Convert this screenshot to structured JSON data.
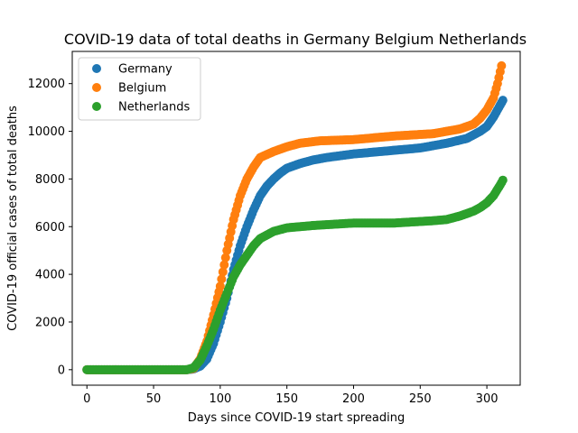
{
  "chart_data": {
    "type": "scatter",
    "title": "COVID-19 data of total deaths in Germany Belgium Netherlands",
    "xlabel": "Days since COVID-19 start spreading",
    "ylabel": "COVID-19 official cases of total deaths",
    "xlim": [
      -11,
      325
    ],
    "ylim": [
      -650,
      13350
    ],
    "xticks": [
      0,
      50,
      100,
      150,
      200,
      250,
      300
    ],
    "yticks": [
      0,
      2000,
      4000,
      6000,
      8000,
      10000,
      12000
    ],
    "legend": {
      "placement": "upper-left"
    },
    "grid": false,
    "x": {
      "start": 0,
      "end": 312,
      "step": 1
    },
    "series": [
      {
        "name": "Germany",
        "color": "#1f77b4",
        "keypoints": [
          [
            0,
            0
          ],
          [
            75,
            0
          ],
          [
            80,
            30
          ],
          [
            85,
            150
          ],
          [
            90,
            450
          ],
          [
            95,
            1100
          ],
          [
            100,
            2000
          ],
          [
            105,
            3000
          ],
          [
            110,
            4200
          ],
          [
            115,
            5200
          ],
          [
            120,
            6000
          ],
          [
            125,
            6700
          ],
          [
            130,
            7300
          ],
          [
            135,
            7700
          ],
          [
            140,
            8000
          ],
          [
            145,
            8250
          ],
          [
            150,
            8450
          ],
          [
            160,
            8650
          ],
          [
            170,
            8800
          ],
          [
            180,
            8900
          ],
          [
            200,
            9050
          ],
          [
            220,
            9150
          ],
          [
            250,
            9300
          ],
          [
            270,
            9500
          ],
          [
            285,
            9700
          ],
          [
            295,
            10000
          ],
          [
            300,
            10200
          ],
          [
            305,
            10600
          ],
          [
            310,
            11100
          ],
          [
            312,
            11300
          ]
        ]
      },
      {
        "name": "Belgium",
        "color": "#ff7f0e",
        "keypoints": [
          [
            0,
            0
          ],
          [
            75,
            0
          ],
          [
            80,
            50
          ],
          [
            85,
            450
          ],
          [
            90,
            1200
          ],
          [
            95,
            2300
          ],
          [
            100,
            3500
          ],
          [
            105,
            5000
          ],
          [
            110,
            6300
          ],
          [
            115,
            7300
          ],
          [
            120,
            8000
          ],
          [
            125,
            8500
          ],
          [
            130,
            8900
          ],
          [
            140,
            9150
          ],
          [
            150,
            9350
          ],
          [
            160,
            9500
          ],
          [
            175,
            9600
          ],
          [
            200,
            9650
          ],
          [
            230,
            9800
          ],
          [
            260,
            9900
          ],
          [
            280,
            10100
          ],
          [
            290,
            10300
          ],
          [
            295,
            10550
          ],
          [
            300,
            10900
          ],
          [
            305,
            11400
          ],
          [
            308,
            12000
          ],
          [
            310,
            12500
          ],
          [
            311,
            12750
          ]
        ]
      },
      {
        "name": "Netherlands",
        "color": "#2ca02c",
        "keypoints": [
          [
            0,
            0
          ],
          [
            75,
            0
          ],
          [
            80,
            80
          ],
          [
            85,
            400
          ],
          [
            90,
            1000
          ],
          [
            95,
            1700
          ],
          [
            100,
            2500
          ],
          [
            105,
            3200
          ],
          [
            110,
            3900
          ],
          [
            115,
            4400
          ],
          [
            120,
            4800
          ],
          [
            125,
            5200
          ],
          [
            130,
            5500
          ],
          [
            140,
            5800
          ],
          [
            150,
            5950
          ],
          [
            170,
            6050
          ],
          [
            200,
            6150
          ],
          [
            230,
            6150
          ],
          [
            260,
            6250
          ],
          [
            270,
            6300
          ],
          [
            280,
            6450
          ],
          [
            290,
            6650
          ],
          [
            295,
            6800
          ],
          [
            300,
            7000
          ],
          [
            305,
            7300
          ],
          [
            310,
            7750
          ],
          [
            312,
            7950
          ]
        ]
      }
    ]
  }
}
